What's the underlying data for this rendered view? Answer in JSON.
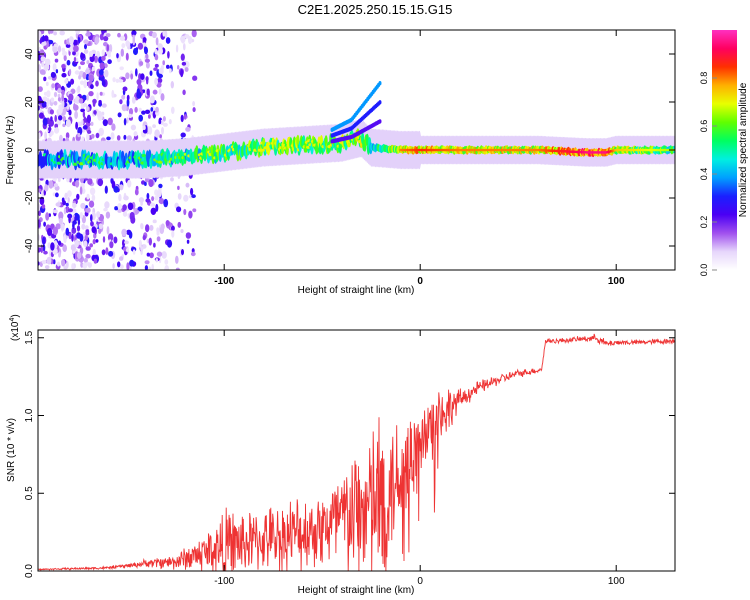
{
  "title": "C2E1.2025.250.15.15.G15",
  "chart_data": [
    {
      "type": "heatmap",
      "title": "C2E1.2025.250.15.15.G15",
      "xlabel": "Height of straight line (km)",
      "ylabel": "Frequency (Hz)",
      "xlim": [
        -195,
        130
      ],
      "ylim": [
        -50,
        50
      ],
      "xticks": [
        -100,
        0,
        100
      ],
      "xtick_labels": [
        "-100",
        "0",
        "100"
      ],
      "yticks": [
        -40,
        -20,
        0,
        20,
        40
      ],
      "ytick_labels": [
        "-40",
        "-20",
        "0",
        "20",
        "40"
      ],
      "colorbar": {
        "label": "Normalized spectral amplitude",
        "range": [
          0,
          1
        ],
        "ticks": [
          0.0,
          0.2,
          0.4,
          0.6,
          0.8
        ],
        "tick_labels": [
          "0.0",
          "0.2",
          "0.4",
          "0.6",
          "0.8"
        ],
        "colormap": [
          "#ffffff",
          "#e6d6fb",
          "#a050ee",
          "#4a00f4",
          "#1a20ff",
          "#00a0ff",
          "#00f0e0",
          "#00ff60",
          "#60ff00",
          "#e8ff00",
          "#ffb000",
          "#ff3000",
          "#ff0060",
          "#ff30c0"
        ]
      },
      "ridge": {
        "x": [
          -195,
          -170,
          -150,
          -140,
          -120,
          -100,
          -80,
          -60,
          -40,
          -30,
          -25,
          -10,
          0,
          20,
          60,
          85,
          95,
          100,
          130
        ],
        "center_hz": [
          -4,
          -4,
          -4,
          -4,
          -3,
          -1,
          1,
          2,
          3,
          5,
          1,
          0,
          0,
          0,
          0,
          -1,
          -1,
          0,
          0
        ],
        "amplitude": [
          0.45,
          0.55,
          0.5,
          0.55,
          0.6,
          0.65,
          0.7,
          0.7,
          0.72,
          0.75,
          0.6,
          0.8,
          0.85,
          0.8,
          0.8,
          0.95,
          0.95,
          0.75,
          0.65
        ]
      },
      "upturn": {
        "x": [
          -45,
          -35,
          -30,
          -25,
          -20
        ],
        "hz": [
          8,
          12,
          17,
          22,
          27
        ]
      }
    },
    {
      "type": "line",
      "xlabel": "Height of straight line (km)",
      "ylabel": "SNR (10 * v/v)",
      "scale_label": "(x10",
      "scale_exponent": "4",
      "scale_close": ")",
      "xlim": [
        -195,
        130
      ],
      "ylim": [
        0,
        1.55
      ],
      "xticks": [
        -100,
        0,
        100
      ],
      "xtick_labels": [
        "-100",
        "0",
        "100"
      ],
      "yticks": [
        0.0,
        0.5,
        1.0,
        1.5
      ],
      "ytick_labels": [
        "0.0",
        "0.5",
        "1.0",
        "1.5"
      ],
      "series": [
        {
          "name": "SNR",
          "color": "#ee3333",
          "x": [
            -195,
            -160,
            -145,
            -140,
            -125,
            -110,
            -100,
            -90,
            -80,
            -70,
            -60,
            -50,
            -40,
            -30,
            -20,
            -15,
            -10,
            -5,
            0,
            5,
            10,
            20,
            30,
            40,
            50,
            60,
            62,
            64,
            70,
            80,
            90,
            95,
            100,
            110,
            130
          ],
          "base": [
            0.01,
            0.02,
            0.04,
            0.05,
            0.06,
            0.12,
            0.16,
            0.18,
            0.2,
            0.22,
            0.25,
            0.28,
            0.32,
            0.38,
            0.45,
            0.55,
            0.65,
            0.72,
            0.8,
            0.9,
            1.0,
            1.1,
            1.18,
            1.23,
            1.27,
            1.29,
            1.3,
            1.48,
            1.48,
            1.49,
            1.5,
            1.46,
            1.47,
            1.47,
            1.48
          ],
          "spread": [
            0.005,
            0.01,
            0.02,
            0.03,
            0.06,
            0.15,
            0.28,
            0.25,
            0.22,
            0.28,
            0.28,
            0.3,
            0.45,
            0.55,
            0.7,
            0.55,
            0.45,
            0.35,
            0.35,
            0.3,
            0.25,
            0.08,
            0.05,
            0.04,
            0.03,
            0.02,
            0.02,
            0.02,
            0.02,
            0.02,
            0.03,
            0.03,
            0.02,
            0.02,
            0.02
          ]
        }
      ]
    }
  ]
}
